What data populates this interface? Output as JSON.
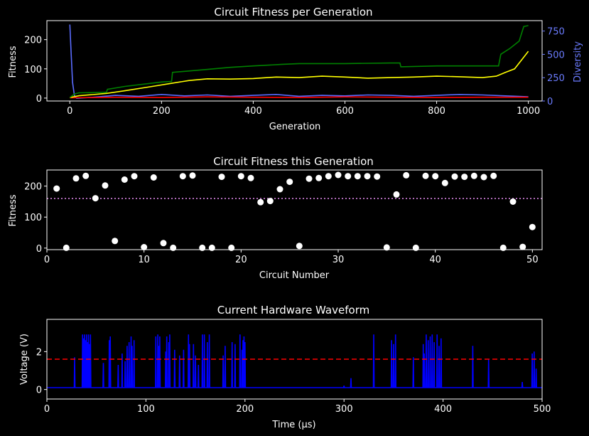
{
  "chart_data": [
    {
      "type": "line",
      "title": "Circuit Fitness per Generation",
      "xlabel": "Generation",
      "ylabel": "Fitness",
      "y2label": "Diversity",
      "xlim": [
        -50,
        1030
      ],
      "ylim": [
        -10,
        265
      ],
      "y2lim": [
        0,
        862
      ],
      "xticks": [
        0,
        200,
        400,
        600,
        800,
        1000
      ],
      "yticks": [
        0,
        100,
        200
      ],
      "y2ticks": [
        0,
        250,
        500,
        750
      ],
      "colors": {
        "green": "#008000",
        "yellow": "#ffff00",
        "red": "#ff0000",
        "blue": "#5a6cff",
        "axis2": "#6b7cff"
      },
      "series": [
        {
          "color": "green",
          "axis": "left",
          "x": [
            0,
            10,
            20,
            80,
            82,
            120,
            200,
            222,
            224,
            300,
            350,
            400,
            460,
            500,
            600,
            700,
            720,
            722,
            800,
            900,
            935,
            940,
            960,
            980,
            990,
            1000
          ],
          "values": [
            2,
            14,
            18,
            20,
            30,
            40,
            55,
            57,
            88,
            98,
            105,
            110,
            115,
            118,
            118,
            120,
            120,
            107,
            110,
            110,
            110,
            150,
            170,
            195,
            245,
            248
          ]
        },
        {
          "color": "yellow",
          "axis": "left",
          "x": [
            0,
            20,
            50,
            80,
            120,
            180,
            220,
            260,
            300,
            350,
            400,
            450,
            500,
            550,
            600,
            650,
            700,
            750,
            800,
            850,
            900,
            930,
            950,
            970,
            990,
            1000
          ],
          "values": [
            2,
            8,
            12,
            16,
            25,
            40,
            50,
            60,
            66,
            65,
            67,
            72,
            70,
            75,
            72,
            68,
            70,
            72,
            75,
            73,
            70,
            75,
            88,
            100,
            140,
            160
          ]
        },
        {
          "color": "red",
          "axis": "left",
          "x": [
            0,
            100,
            200,
            300,
            400,
            500,
            600,
            700,
            800,
            900,
            1000
          ],
          "values": [
            1,
            3,
            2,
            4,
            3,
            2,
            4,
            3,
            2,
            3,
            3
          ]
        },
        {
          "color": "blue",
          "axis": "right",
          "x": [
            0,
            3,
            6,
            10,
            15,
            50,
            100,
            150,
            200,
            250,
            300,
            350,
            400,
            450,
            500,
            550,
            600,
            650,
            700,
            750,
            800,
            850,
            900,
            950,
            1000
          ],
          "values": [
            820,
            500,
            200,
            60,
            30,
            40,
            60,
            50,
            70,
            55,
            65,
            50,
            60,
            70,
            50,
            60,
            55,
            65,
            60,
            50,
            60,
            70,
            65,
            55,
            45
          ]
        }
      ]
    },
    {
      "type": "scatter",
      "title": "Circuit Fitness this Generation",
      "xlabel": "Circuit Number",
      "ylabel": "Fitness",
      "xlim": [
        0,
        51
      ],
      "ylim": [
        -5,
        252
      ],
      "xticks": [
        0,
        10,
        20,
        30,
        40,
        50
      ],
      "yticks": [
        0,
        100,
        200
      ],
      "reference_line": {
        "y": 160,
        "style": "dotted",
        "color": "#e58cf0"
      },
      "x": [
        1,
        2,
        3,
        4,
        5,
        6,
        7,
        8,
        9,
        10,
        11,
        12,
        13,
        14,
        15,
        16,
        17,
        18,
        19,
        20,
        21,
        22,
        23,
        24,
        25,
        26,
        27,
        28,
        29,
        30,
        31,
        32,
        33,
        34,
        35,
        36,
        37,
        38,
        39,
        40,
        41,
        42,
        43,
        44,
        45,
        46,
        47,
        48,
        49,
        50
      ],
      "values": [
        192,
        1,
        225,
        233,
        161,
        202,
        23,
        221,
        232,
        3,
        228,
        16,
        1,
        232,
        234,
        1,
        1,
        230,
        1,
        232,
        226,
        148,
        152,
        190,
        214,
        7,
        224,
        226,
        232,
        236,
        232,
        232,
        232,
        231,
        2,
        173,
        235,
        1,
        233,
        232,
        210,
        231,
        230,
        233,
        229,
        233,
        1,
        150,
        4,
        68
      ]
    },
    {
      "type": "line",
      "title": "Current Hardware Waveform",
      "xlabel": "Time (µs)",
      "ylabel": "Voltage (V)",
      "xlim": [
        0,
        500
      ],
      "ylim": [
        -0.5,
        3.7
      ],
      "xticks": [
        0,
        100,
        200,
        300,
        400,
        500
      ],
      "yticks": [
        0,
        2
      ],
      "baseline_v": 0.1,
      "threshold_line": {
        "y": 1.6,
        "style": "dashed",
        "color": "#ff0000"
      },
      "series": [
        {
          "color": "#0000ff",
          "spikes": [
            [
              28,
              1.7
            ],
            [
              36,
              2.9
            ],
            [
              37,
              2.7
            ],
            [
              38,
              2.9
            ],
            [
              39,
              2.6
            ],
            [
              40,
              2.9
            ],
            [
              41,
              2.5
            ],
            [
              42,
              2.9
            ],
            [
              43,
              2.4
            ],
            [
              44,
              2.9
            ],
            [
              57,
              1.4
            ],
            [
              63,
              2.6
            ],
            [
              64,
              2.8
            ],
            [
              72,
              1.3
            ],
            [
              76,
              1.9
            ],
            [
              79,
              1.5
            ],
            [
              81,
              2.3
            ],
            [
              83,
              2.5
            ],
            [
              85,
              2.8
            ],
            [
              86,
              2.3
            ],
            [
              88,
              2.6
            ],
            [
              110,
              2.8
            ],
            [
              112,
              2.9
            ],
            [
              113,
              2.3
            ],
            [
              114,
              2.8
            ],
            [
              120,
              2.0
            ],
            [
              121,
              2.8
            ],
            [
              123,
              2.5
            ],
            [
              124,
              2.9
            ],
            [
              129,
              2.1
            ],
            [
              134,
              1.8
            ],
            [
              138,
              2.1
            ],
            [
              143,
              2.9
            ],
            [
              144,
              2.4
            ],
            [
              148,
              2.4
            ],
            [
              150,
              1.8
            ],
            [
              153,
              1.3
            ],
            [
              157,
              2.9
            ],
            [
              159,
              2.9
            ],
            [
              162,
              2.5
            ],
            [
              164,
              2.9
            ],
            [
              178,
              1.8
            ],
            [
              180,
              2.3
            ],
            [
              187,
              2.5
            ],
            [
              190,
              2.4
            ],
            [
              195,
              2.9
            ],
            [
              197,
              2.1
            ],
            [
              198,
              2.6
            ],
            [
              199,
              2.8
            ],
            [
              200,
              2.5
            ],
            [
              300,
              0.2
            ],
            [
              307,
              0.6
            ],
            [
              330,
              2.9
            ],
            [
              348,
              2.6
            ],
            [
              350,
              2.4
            ],
            [
              352,
              2.9
            ],
            [
              370,
              1.7
            ],
            [
              380,
              2.4
            ],
            [
              381,
              1.9
            ],
            [
              383,
              2.9
            ],
            [
              385,
              2.6
            ],
            [
              387,
              2.8
            ],
            [
              389,
              2.9
            ],
            [
              391,
              2.5
            ],
            [
              394,
              2.9
            ],
            [
              396,
              2.3
            ],
            [
              398,
              2.7
            ],
            [
              430,
              2.3
            ],
            [
              446,
              1.6
            ],
            [
              480,
              0.4
            ],
            [
              490,
              1.9
            ],
            [
              492,
              2.0
            ],
            [
              494,
              1.1
            ]
          ]
        }
      ]
    }
  ]
}
